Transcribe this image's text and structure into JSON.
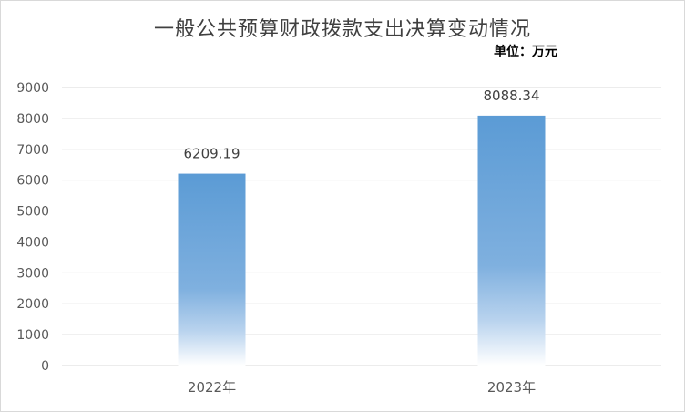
{
  "chart_data": {
    "type": "bar",
    "title": "一般公共预算财政拨款支出决算变动情况",
    "unit_label": "单位：万元",
    "categories": [
      "2022年",
      "2023年"
    ],
    "values": [
      6209.19,
      8088.34
    ],
    "data_labels": [
      "6209.19",
      "8088.34"
    ],
    "ylim": [
      0,
      9000
    ],
    "yticks": [
      0,
      1000,
      2000,
      3000,
      4000,
      5000,
      6000,
      7000,
      8000,
      9000
    ],
    "grid": true,
    "legend": "none",
    "colors": {
      "bar_top": "#5b9bd5",
      "bar_bottom": "#ffffff",
      "grid": "#d9d9d9"
    }
  }
}
